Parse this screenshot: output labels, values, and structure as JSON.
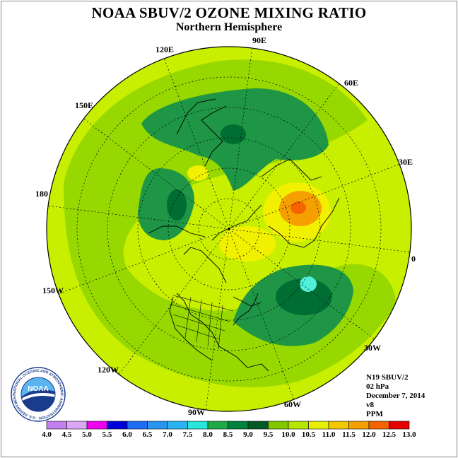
{
  "title": "NOAA SBUV/2 OZONE MIXING RATIO",
  "subtitle": "Northern Hemisphere",
  "longitude_labels": {
    "e90": "90E",
    "e60": "60E",
    "e30": "30E",
    "zero": "0",
    "w30": "30W",
    "w60": "60W",
    "w90": "90W",
    "w120": "120W",
    "w150": "150W",
    "lon180": "180",
    "e150": "150E",
    "e120": "120E"
  },
  "info": {
    "instrument": "N19 SBUV/2",
    "level": "02 hPa",
    "date": "December 7, 2014",
    "version": "v8",
    "units": "PPM"
  },
  "logo": {
    "text": "NOAA",
    "ring_text": "NATIONAL OCEANIC AND ATMOSPHERIC ADMINISTRATION · U.S. DEPARTMENT OF COMMERCE"
  },
  "colorbar": {
    "ticks": [
      "4.0",
      "4.5",
      "5.0",
      "5.5",
      "6.0",
      "6.5",
      "7.0",
      "7.5",
      "8.0",
      "8.5",
      "9.0",
      "9.5",
      "10.0",
      "10.5",
      "11.0",
      "11.5",
      "12.0",
      "12.5",
      "13.0"
    ],
    "colors": [
      "#c27ff0",
      "#dca6f7",
      "#f000f0",
      "#0000d8",
      "#1e6ef5",
      "#2896f0",
      "#28b4f0",
      "#28e6dc",
      "#1eaa46",
      "#00823c",
      "#005a28",
      "#82c800",
      "#b4e600",
      "#e6f000",
      "#f0c800",
      "#f5a000",
      "#f56400",
      "#e60000",
      "#8c5a3c"
    ]
  },
  "map_colors": {
    "base": "#c8ee00",
    "green_9_5": "#96d800",
    "green_8_5": "#1e9646",
    "green_8_0": "#006e32",
    "yellow": "#f0f000",
    "orange": "#f5a000",
    "red_orange": "#f56400",
    "cyan": "#50f0dc"
  }
}
